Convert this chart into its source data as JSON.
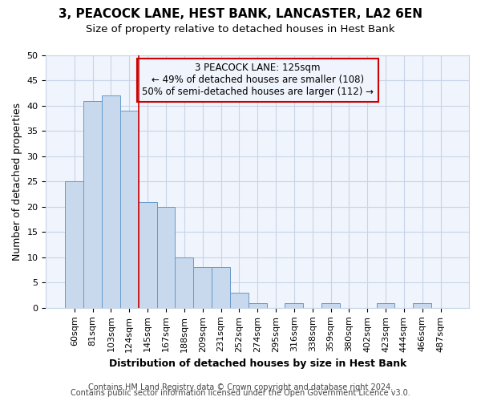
{
  "title": "3, PEACOCK LANE, HEST BANK, LANCASTER, LA2 6EN",
  "subtitle": "Size of property relative to detached houses in Hest Bank",
  "xlabel": "Distribution of detached houses by size in Hest Bank",
  "ylabel": "Number of detached properties",
  "categories": [
    "60sqm",
    "81sqm",
    "103sqm",
    "124sqm",
    "145sqm",
    "167sqm",
    "188sqm",
    "209sqm",
    "231sqm",
    "252sqm",
    "274sqm",
    "295sqm",
    "316sqm",
    "338sqm",
    "359sqm",
    "380sqm",
    "402sqm",
    "423sqm",
    "444sqm",
    "466sqm",
    "487sqm"
  ],
  "values": [
    25,
    41,
    42,
    39,
    21,
    20,
    10,
    8,
    8,
    3,
    1,
    0,
    1,
    0,
    1,
    0,
    0,
    1,
    0,
    1,
    0
  ],
  "bar_color": "#c8d9ee",
  "bar_edge_color": "#6699cc",
  "grid_color": "#c8d4e8",
  "vline_x_idx": 3,
  "vline_color": "#cc0000",
  "ann_line1": "3 PEACOCK LANE: 125sqm",
  "ann_line2": "← 49% of detached houses are smaller (108)",
  "ann_line3": "50% of semi-detached houses are larger (112) →",
  "ann_box_color": "#cc0000",
  "ylim": [
    0,
    50
  ],
  "yticks": [
    0,
    5,
    10,
    15,
    20,
    25,
    30,
    35,
    40,
    45,
    50
  ],
  "footer_line1": "Contains HM Land Registry data © Crown copyright and database right 2024.",
  "footer_line2": "Contains public sector information licensed under the Open Government Licence v3.0.",
  "bg_color": "#ffffff",
  "plot_bg_color": "#f0f4fc",
  "title_fontsize": 11,
  "subtitle_fontsize": 9.5,
  "axis_label_fontsize": 9,
  "tick_fontsize": 8,
  "footer_fontsize": 7,
  "ann_fontsize": 8.5
}
